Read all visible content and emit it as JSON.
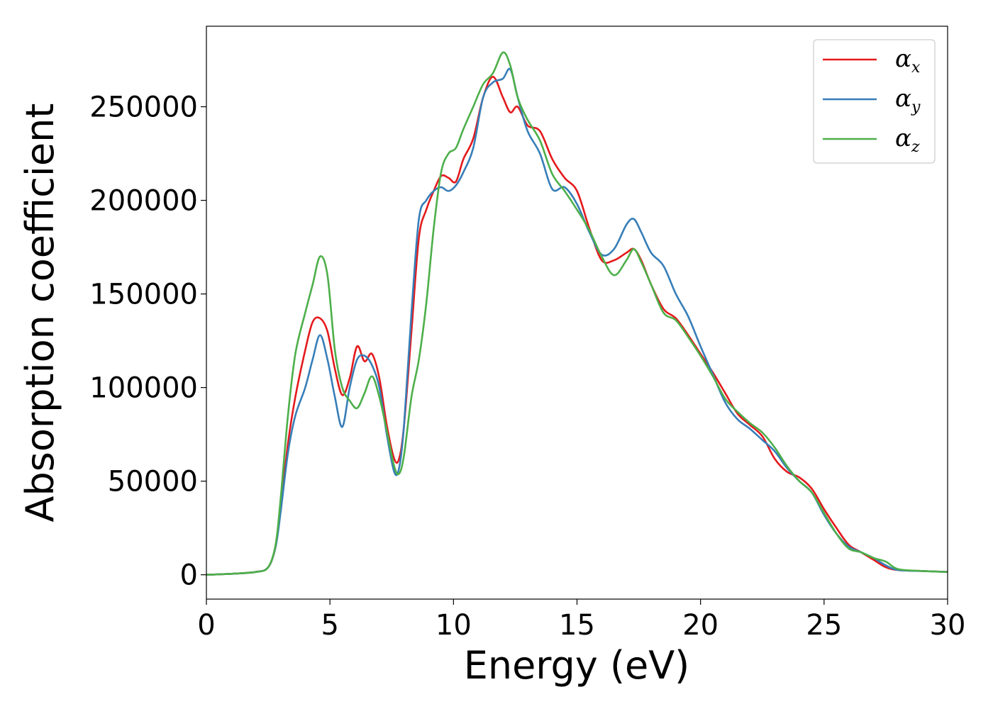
{
  "chart_data": {
    "type": "line",
    "xlabel": "Energy (eV)",
    "ylabel": "Absorption coefficient",
    "xlim": [
      0,
      30
    ],
    "ylim": [
      -13000,
      293000
    ],
    "xticks": [
      0,
      5,
      10,
      15,
      20,
      25,
      30
    ],
    "yticks": [
      0,
      50000,
      100000,
      150000,
      200000,
      250000
    ],
    "grid": false,
    "legend_position": "top-right",
    "x": [
      0,
      1,
      2,
      2.5,
      2.8,
      3,
      3.3,
      3.6,
      4,
      4.3,
      4.6,
      4.9,
      5.2,
      5.5,
      5.8,
      6.1,
      6.4,
      6.7,
      7,
      7.3,
      7.6,
      7.8,
      8,
      8.3,
      8.6,
      8.9,
      9.2,
      9.5,
      9.8,
      10.1,
      10.4,
      10.8,
      11.2,
      11.6,
      12,
      12.3,
      12.6,
      13,
      13.5,
      14,
      14.5,
      15,
      15.5,
      16,
      16.5,
      17,
      17.3,
      17.6,
      18,
      18.5,
      19,
      19.5,
      20,
      20.5,
      21,
      21.5,
      22,
      22.5,
      23,
      23.5,
      24,
      24.5,
      25,
      25.5,
      26,
      26.5,
      27,
      27.5,
      28,
      29,
      30
    ],
    "series": [
      {
        "name": "α",
        "subscript": "x",
        "color": "#e41a1c",
        "values": [
          0,
          500,
          1500,
          4000,
          15000,
          35000,
          70000,
          95000,
          120000,
          135000,
          137000,
          130000,
          110000,
          96000,
          105000,
          122000,
          114000,
          118000,
          105000,
          80000,
          62000,
          62000,
          80000,
          130000,
          180000,
          195000,
          205000,
          213000,
          212000,
          210000,
          222000,
          233000,
          255000,
          266000,
          255000,
          247000,
          250000,
          240000,
          237000,
          222000,
          212000,
          205000,
          185000,
          168000,
          168000,
          172000,
          174000,
          168000,
          155000,
          142000,
          137000,
          128000,
          118000,
          108000,
          97000,
          86000,
          80000,
          74000,
          62000,
          55000,
          52000,
          46000,
          35000,
          25000,
          16000,
          12000,
          8000,
          4000,
          2500,
          2000,
          1500
        ]
      },
      {
        "name": "α",
        "subscript": "y",
        "color": "#377eb8",
        "values": [
          0,
          500,
          1500,
          4000,
          15000,
          33000,
          65000,
          85000,
          100000,
          115000,
          128000,
          115000,
          95000,
          79000,
          100000,
          115000,
          117000,
          112000,
          100000,
          75000,
          55000,
          57000,
          80000,
          140000,
          190000,
          200000,
          205000,
          207000,
          205000,
          208000,
          215000,
          228000,
          255000,
          263000,
          265000,
          270000,
          255000,
          237000,
          225000,
          206000,
          207000,
          198000,
          183000,
          171000,
          174000,
          187000,
          190000,
          183000,
          172000,
          165000,
          150000,
          138000,
          122000,
          107000,
          92000,
          83000,
          78000,
          72000,
          66000,
          57000,
          50000,
          44000,
          32000,
          22000,
          15000,
          12000,
          9000,
          5000,
          2500,
          2000,
          1500
        ]
      },
      {
        "name": "α",
        "subscript": "z",
        "color": "#4daf4a",
        "values": [
          0,
          500,
          1500,
          4000,
          16000,
          40000,
          85000,
          118000,
          140000,
          155000,
          170000,
          160000,
          120000,
          100000,
          93000,
          89000,
          97000,
          106000,
          95000,
          77000,
          58000,
          54000,
          64000,
          95000,
          115000,
          145000,
          185000,
          215000,
          225000,
          228000,
          238000,
          250000,
          262000,
          268000,
          279000,
          272000,
          255000,
          243000,
          232000,
          214000,
          205000,
          195000,
          184000,
          170000,
          160000,
          168000,
          174000,
          167000,
          155000,
          140000,
          136000,
          127000,
          117000,
          106000,
          94000,
          87000,
          81000,
          76000,
          68000,
          58000,
          50000,
          44000,
          33000,
          22000,
          14000,
          12000,
          9000,
          7000,
          3000,
          2000,
          1500
        ]
      }
    ]
  }
}
